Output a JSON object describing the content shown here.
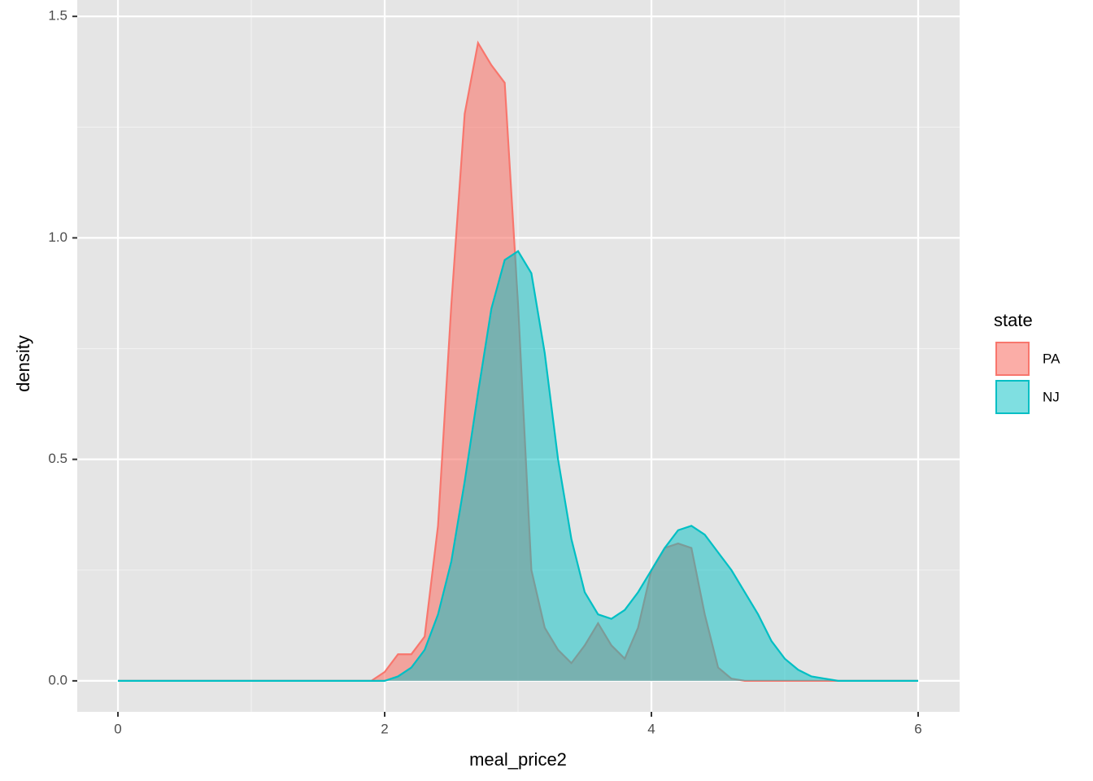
{
  "chart_data": {
    "type": "density",
    "x_label": "meal_price2",
    "y_label": "density",
    "legend_title": "state",
    "legend_position": "right",
    "x": [
      0,
      1.9,
      2.0,
      2.1,
      2.2,
      2.3,
      2.4,
      2.5,
      2.6,
      2.7,
      2.8,
      2.9,
      3.0,
      3.1,
      3.2,
      3.3,
      3.4,
      3.5,
      3.6,
      3.7,
      3.8,
      3.9,
      4.0,
      4.1,
      4.2,
      4.3,
      4.4,
      4.5,
      4.6,
      4.7,
      4.8,
      4.9,
      5.0,
      5.1,
      5.2,
      5.3,
      5.4,
      6
    ],
    "series": [
      {
        "name": "PA",
        "color": "#F8766D",
        "fill_opacity": 0.6,
        "values": [
          0,
          0,
          0.02,
          0.06,
          0.06,
          0.1,
          0.35,
          0.85,
          1.28,
          1.44,
          1.39,
          1.35,
          0.85,
          0.25,
          0.12,
          0.07,
          0.04,
          0.08,
          0.13,
          0.08,
          0.05,
          0.12,
          0.25,
          0.3,
          0.31,
          0.3,
          0.15,
          0.03,
          0.005,
          0,
          0,
          0,
          0,
          0,
          0,
          0,
          0,
          0
        ]
      },
      {
        "name": "NJ",
        "color": "#00BFC4",
        "fill_opacity": 0.5,
        "values": [
          0,
          0,
          0,
          0.01,
          0.03,
          0.07,
          0.15,
          0.27,
          0.45,
          0.65,
          0.84,
          0.95,
          0.97,
          0.92,
          0.74,
          0.5,
          0.32,
          0.2,
          0.15,
          0.14,
          0.16,
          0.2,
          0.25,
          0.3,
          0.34,
          0.35,
          0.33,
          0.29,
          0.25,
          0.2,
          0.15,
          0.09,
          0.05,
          0.025,
          0.01,
          0.005,
          0,
          0
        ]
      }
    ],
    "xlim": [
      -0.305,
      6.311
    ],
    "ylim": [
      -0.07,
      1.537
    ],
    "xticks": [
      0,
      2,
      4,
      6
    ],
    "yticks": [
      {
        "value": 0,
        "label": "0.0"
      },
      {
        "value": 0.5,
        "label": "0.5"
      },
      {
        "value": 1,
        "label": "1.0"
      },
      {
        "value": 1.5,
        "label": "1.5"
      }
    ],
    "x_minor_grid": [
      1,
      3,
      5
    ],
    "y_minor_grid": [
      0.25,
      0.75,
      1.25
    ],
    "grid": true,
    "panel_color": "#E5E5E5"
  }
}
